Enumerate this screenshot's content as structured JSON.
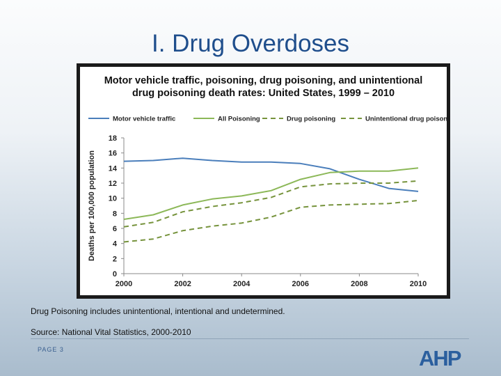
{
  "slide": {
    "title": "I. Drug Overdoses",
    "note": "Drug Poisoning includes unintentional, intentional and undetermined.",
    "source": "Source: National Vital Statistics, 2000-2010",
    "page_label": "PAGE 3",
    "logo_text": "AHP"
  },
  "colors": {
    "title": "#1f4e8c",
    "motor": "#4a7ebb",
    "green": "#8cb858",
    "dashed": "#76933c"
  },
  "chart_data": {
    "type": "line",
    "title_line1": "Motor vehicle traffic, poisoning, drug poisoning, and unintentional",
    "title_line2": "drug poisoning death rates: United States, 1999 – 2010",
    "ylabel": "Deaths per 100,000 population",
    "xlabel": "",
    "ylim": [
      0,
      18
    ],
    "xlim": [
      2000,
      2010
    ],
    "yticks": [
      "0",
      "2",
      "4",
      "6",
      "8",
      "10",
      "12",
      "14",
      "16",
      "18"
    ],
    "xticks": [
      "2000",
      "2002",
      "2004",
      "2006",
      "2008",
      "2010"
    ],
    "legend_position": "top",
    "x": [
      2000,
      2001,
      2002,
      2003,
      2004,
      2005,
      2006,
      2007,
      2008,
      2009,
      2010
    ],
    "series": [
      {
        "name": "Motor vehicle traffic",
        "style": "solid",
        "color": "#4a7ebb",
        "values": [
          14.9,
          15.0,
          15.3,
          15.0,
          14.8,
          14.8,
          14.6,
          13.9,
          12.5,
          11.3,
          10.9
        ]
      },
      {
        "name": "All Poisoning",
        "style": "solid",
        "color": "#8cb858",
        "values": [
          7.2,
          7.8,
          9.1,
          9.9,
          10.3,
          11.0,
          12.5,
          13.4,
          13.6,
          13.6,
          14.0
        ]
      },
      {
        "name": "Drug poisoning",
        "style": "dashed",
        "color": "#76933c",
        "values": [
          6.2,
          6.8,
          8.2,
          8.9,
          9.4,
          10.1,
          11.5,
          11.9,
          12.0,
          12.0,
          12.3
        ]
      },
      {
        "name": "Unintentional drug poisoning",
        "style": "dashed",
        "color": "#76933c",
        "values": [
          4.2,
          4.6,
          5.7,
          6.3,
          6.7,
          7.5,
          8.8,
          9.1,
          9.2,
          9.3,
          9.7
        ]
      }
    ]
  }
}
